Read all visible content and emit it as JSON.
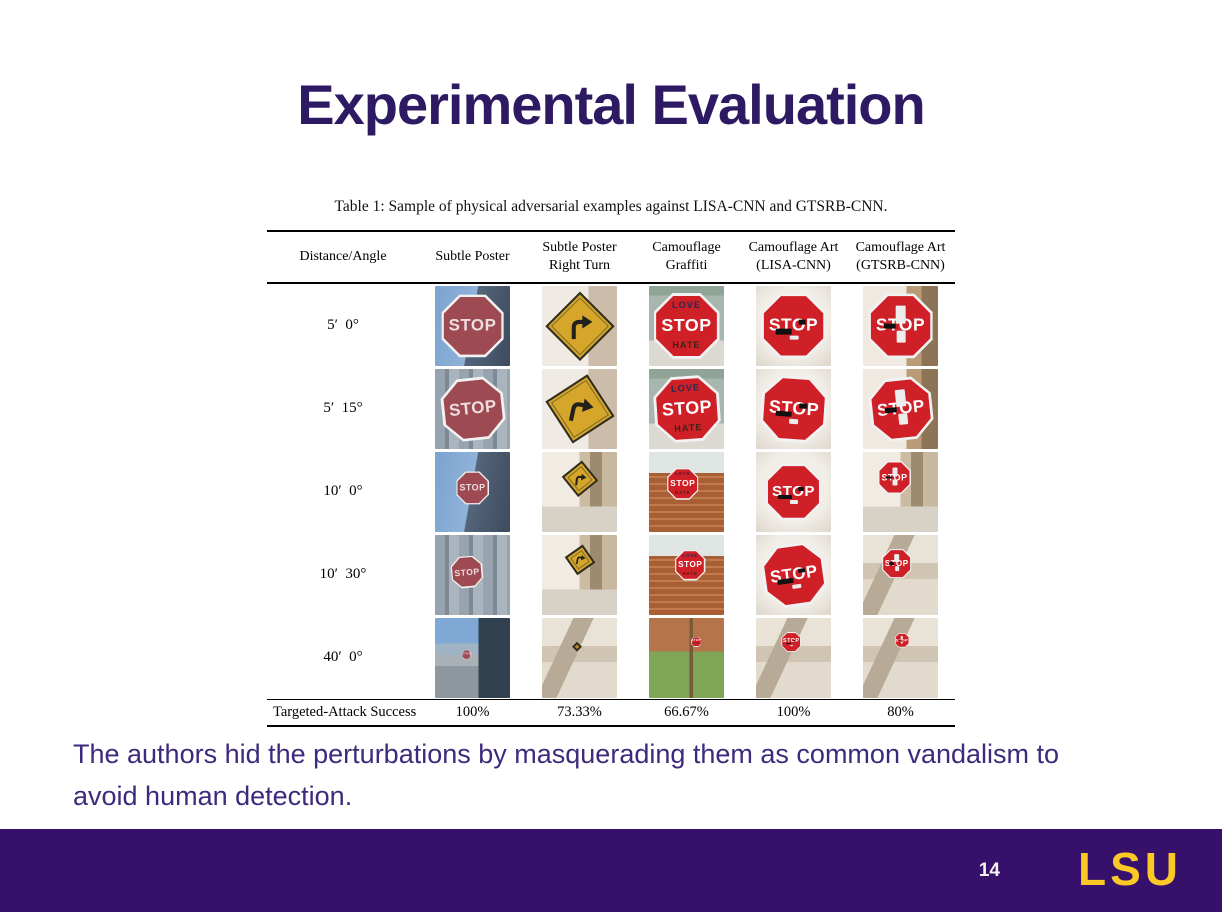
{
  "slide": {
    "title": "Experimental Evaluation"
  },
  "table": {
    "caption": "Table 1: Sample of physical adversarial examples against LISA-CNN and GTSRB-CNN.",
    "columns": [
      "Distance/Angle",
      "Subtle Poster",
      "Subtle Poster\nRight Turn",
      "Camouflage\nGraffiti",
      "Camouflage Art\n(LISA-CNN)",
      "Camouflage Art\n(GTSRB-CNN)"
    ],
    "rows": [
      {
        "label": "5′  0°",
        "cells": [
          {
            "sign": "subtle-poster-stop",
            "bg": "sky",
            "scale": 0.95
          },
          {
            "sign": "right-turn",
            "bg": "indoor",
            "scale": 0.92
          },
          {
            "sign": "graffiti-stop",
            "bg": "window",
            "scale": 1.0
          },
          {
            "sign": "camo-art-lisa-stop",
            "bg": "plain",
            "scale": 0.98
          },
          {
            "sign": "camo-art-gtsrb-stop",
            "bg": "warm",
            "scale": 0.98
          }
        ]
      },
      {
        "label": "5′  15°",
        "cells": [
          {
            "sign": "subtle-poster-stop",
            "bg": "bldg",
            "scale": 0.95,
            "tilt": -6
          },
          {
            "sign": "right-turn",
            "bg": "indoor",
            "scale": 0.95,
            "tilt": 12
          },
          {
            "sign": "graffiti-stop",
            "bg": "window",
            "scale": 1.0,
            "tilt": -4
          },
          {
            "sign": "camo-art-lisa-stop",
            "bg": "plain",
            "scale": 1.0,
            "tilt": 4
          },
          {
            "sign": "camo-art-gtsrb-stop",
            "bg": "warm",
            "scale": 0.95,
            "tilt": -6
          }
        ]
      },
      {
        "label": "10′  0°",
        "cells": [
          {
            "sign": "subtle-poster-stop",
            "bg": "sky",
            "scale": 0.5,
            "y": 45
          },
          {
            "sign": "right-turn",
            "bg": "hall",
            "scale": 0.5,
            "y": 34,
            "tilt": 6
          },
          {
            "sign": "graffiti-stop",
            "bg": "brick",
            "scale": 0.48,
            "x": 45,
            "y": 40
          },
          {
            "sign": "camo-art-lisa-stop",
            "bg": "plain",
            "scale": 0.85
          },
          {
            "sign": "camo-art-gtsrb-stop",
            "bg": "hall",
            "scale": 0.5,
            "x": 42,
            "y": 32
          }
        ]
      },
      {
        "label": "10′  30°",
        "cells": [
          {
            "sign": "subtle-poster-stop",
            "bg": "bldg",
            "scale": 0.48,
            "x": 42,
            "y": 46,
            "tilt": -5
          },
          {
            "sign": "right-turn",
            "bg": "hall",
            "scale": 0.42,
            "y": 32,
            "tilt": 10
          },
          {
            "sign": "graffiti-stop",
            "bg": "brick",
            "scale": 0.46,
            "x": 55,
            "y": 38
          },
          {
            "sign": "camo-art-lisa-stop",
            "bg": "plain",
            "scale": 0.95,
            "tilt": -8
          },
          {
            "sign": "camo-art-gtsrb-stop",
            "bg": "stairs",
            "scale": 0.45,
            "x": 45,
            "y": 36
          }
        ]
      },
      {
        "label": "40′  0°",
        "cells": [
          {
            "sign": "subtle-poster-stop",
            "bg": "street",
            "scale": 0.14,
            "x": 42,
            "y": 46
          },
          {
            "sign": "right-turn",
            "bg": "stairs",
            "scale": 0.14,
            "x": 46,
            "y": 36
          },
          {
            "sign": "graffiti-stop",
            "bg": "lawn",
            "scale": 0.15,
            "x": 63,
            "y": 30
          },
          {
            "sign": "camo-art-lisa-stop",
            "bg": "stairs",
            "scale": 0.3,
            "x": 47,
            "y": 30
          },
          {
            "sign": "camo-art-gtsrb-stop",
            "bg": "stairs",
            "scale": 0.22,
            "x": 52,
            "y": 28
          }
        ]
      }
    ],
    "footer": {
      "label": "Targeted-Attack Success",
      "values": [
        "100%",
        "73.33%",
        "66.67%",
        "100%",
        "80%"
      ]
    }
  },
  "note": "The authors hid the perturbations by masquerading them as common vandalism to avoid human detection.",
  "footer_bar": {
    "page_number": "14",
    "logo": "LSU"
  },
  "sign_text": {
    "stop": "STOP",
    "graffiti_top": "LOVE",
    "graffiti_bottom": "HATE"
  },
  "colors": {
    "title": "#2e1a63",
    "note_text": "#3e2a7d",
    "bar": "#36106b",
    "lsu_gold": "#fbc926",
    "sign_red": "#cf2027",
    "subtle_sign_red": "#9e4a52"
  }
}
